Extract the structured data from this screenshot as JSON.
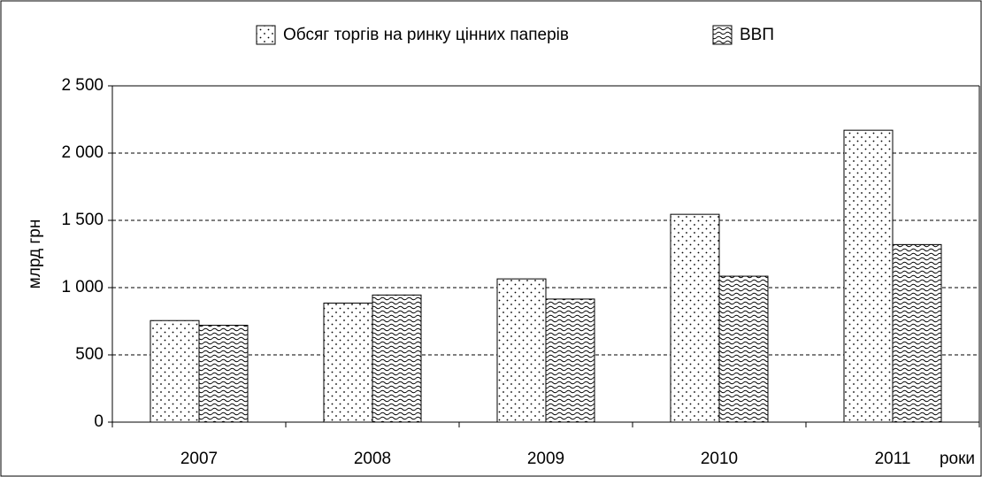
{
  "chart_data": {
    "type": "bar",
    "y_label": "млрд грн",
    "x_label": "роки",
    "categories": [
      "2007",
      "2008",
      "2009",
      "2010",
      "2011"
    ],
    "series": [
      {
        "name": "Обсяг торгів на ринку цінних паперів",
        "color": "#000000",
        "pattern": "dots",
        "values": [
          755,
          885,
          1065,
          1545,
          2170
        ]
      },
      {
        "name": "ВВП",
        "color": "#000000",
        "pattern": "waves",
        "values": [
          720,
          945,
          915,
          1085,
          1320
        ]
      }
    ],
    "ylim": [
      0,
      2500
    ],
    "yticks": [
      0,
      500,
      {
        "value": 1000,
        "label": "1 000"
      },
      {
        "value": 1500,
        "label": "1 500"
      },
      {
        "value": 2000,
        "label": "2 000"
      },
      {
        "value": 2500,
        "label": "2 500"
      }
    ],
    "grid": true,
    "legend": "top"
  }
}
